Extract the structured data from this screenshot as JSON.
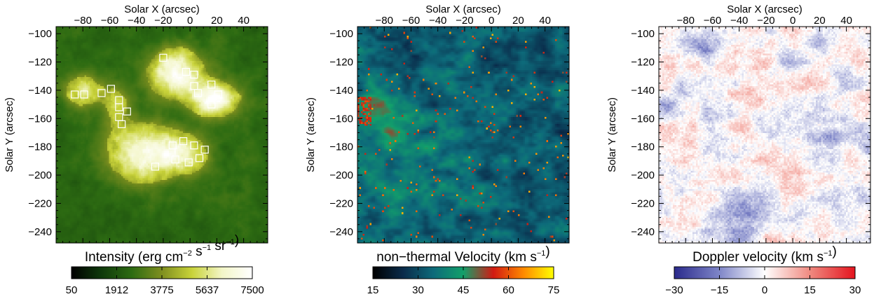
{
  "figure": {
    "panels": [
      {
        "id": "intensity",
        "map_style": "intensity",
        "xaxis_title": "Solar X (arcsec)",
        "yaxis_title": "Solar Y (arcsec)",
        "colorbar": {
          "title_main": "Intensity (erg cm",
          "title_sup1": "−2",
          "title_mid1": " s",
          "title_sup2": "−1",
          "title_mid2": " sr",
          "title_sup3": "−1",
          "title_end": ")",
          "ticks": [
            "50",
            "1912",
            "3775",
            "5637",
            "7500"
          ],
          "colors": [
            "#000000",
            "#0f3a0b",
            "#2d6b12",
            "#7f8f1f",
            "#c9d33a",
            "#f3f6c8",
            "#ffffff"
          ]
        },
        "boxes": [
          [
            -86,
            -143
          ],
          [
            -79,
            -143
          ],
          [
            -66,
            -142
          ],
          [
            -59,
            -139
          ],
          [
            -53,
            -147
          ],
          [
            -53,
            -152
          ],
          [
            -53,
            -159
          ],
          [
            -47,
            -155
          ],
          [
            -51,
            -164
          ],
          [
            -20,
            -117
          ],
          [
            -3,
            -127
          ],
          [
            3,
            -129
          ],
          [
            3,
            -137
          ],
          [
            6,
            -142
          ],
          [
            16,
            -136
          ],
          [
            21,
            -143
          ],
          [
            16,
            -150
          ],
          [
            -13,
            -179
          ],
          [
            -5,
            -176
          ],
          [
            3,
            -179
          ],
          [
            11,
            -182
          ],
          [
            -11,
            -189
          ],
          [
            -1,
            -191
          ],
          [
            7,
            -188
          ],
          [
            -26,
            -194
          ]
        ]
      },
      {
        "id": "nonthermal",
        "map_style": "nonthermal",
        "xaxis_title": "Solar X (arcsec)",
        "yaxis_title": "Solar Y (arcsec)",
        "colorbar": {
          "title_main": "non−thermal Velocity (km s",
          "title_sup1": "−1",
          "title_end": ")",
          "ticks": [
            "15",
            "30",
            "45",
            "60",
            "75"
          ],
          "colors": [
            "#000000",
            "#0a2b4a",
            "#0d6a7a",
            "#12a06a",
            "#d21a12",
            "#ff8a00",
            "#ffff00"
          ]
        }
      },
      {
        "id": "doppler",
        "map_style": "doppler",
        "xaxis_title": "Solar X (arcsec)",
        "yaxis_title": "Solar Y (arcsec)",
        "colorbar": {
          "title_main": "Doppler velocity (km s",
          "title_sup1": "−1",
          "title_end": ")",
          "ticks": [
            "−30",
            "−15",
            "0",
            "15",
            "30"
          ],
          "colors": [
            "#2a2a8c",
            "#7f86c8",
            "#ffffff",
            "#f08a80",
            "#e4141e"
          ]
        }
      }
    ]
  },
  "chart_data": [
    {
      "type": "heatmap",
      "title": "",
      "xlabel": "Solar X (arcsec)",
      "ylabel": "Solar Y (arcsec)",
      "xlim": [
        -100,
        58
      ],
      "ylim": [
        -248,
        -95
      ],
      "xticks": [
        -80,
        -60,
        -40,
        -20,
        0,
        20,
        40
      ],
      "yticks": [
        -100,
        -120,
        -140,
        -160,
        -180,
        -200,
        -220,
        -240
      ],
      "colorbar_label": "Intensity (erg cm^-2 s^-1 sr^-1)",
      "colorbar_range": [
        50,
        7500
      ],
      "colorbar_ticks": [
        50,
        1912,
        3775,
        5637,
        7500
      ]
    },
    {
      "type": "heatmap",
      "title": "",
      "xlabel": "Solar X (arcsec)",
      "ylabel": "Solar Y (arcsec)",
      "xlim": [
        -100,
        58
      ],
      "ylim": [
        -248,
        -95
      ],
      "xticks": [
        -80,
        -60,
        -40,
        -20,
        0,
        20,
        40
      ],
      "yticks": [
        -100,
        -120,
        -140,
        -160,
        -180,
        -200,
        -220,
        -240
      ],
      "colorbar_label": "non-thermal Velocity (km s^-1)",
      "colorbar_range": [
        15,
        75
      ],
      "colorbar_ticks": [
        15,
        30,
        45,
        60,
        75
      ]
    },
    {
      "type": "heatmap",
      "title": "",
      "xlabel": "Solar X (arcsec)",
      "ylabel": "Solar Y (arcsec)",
      "xlim": [
        -100,
        58
      ],
      "ylim": [
        -248,
        -95
      ],
      "xticks": [
        -80,
        -60,
        -40,
        -20,
        0,
        20,
        40
      ],
      "yticks": [
        -100,
        -120,
        -140,
        -160,
        -180,
        -200,
        -220,
        -240
      ],
      "colorbar_label": "Doppler velocity (km s^-1)",
      "colorbar_range": [
        -30,
        30
      ],
      "colorbar_ticks": [
        -30,
        -15,
        0,
        15,
        30
      ]
    }
  ]
}
